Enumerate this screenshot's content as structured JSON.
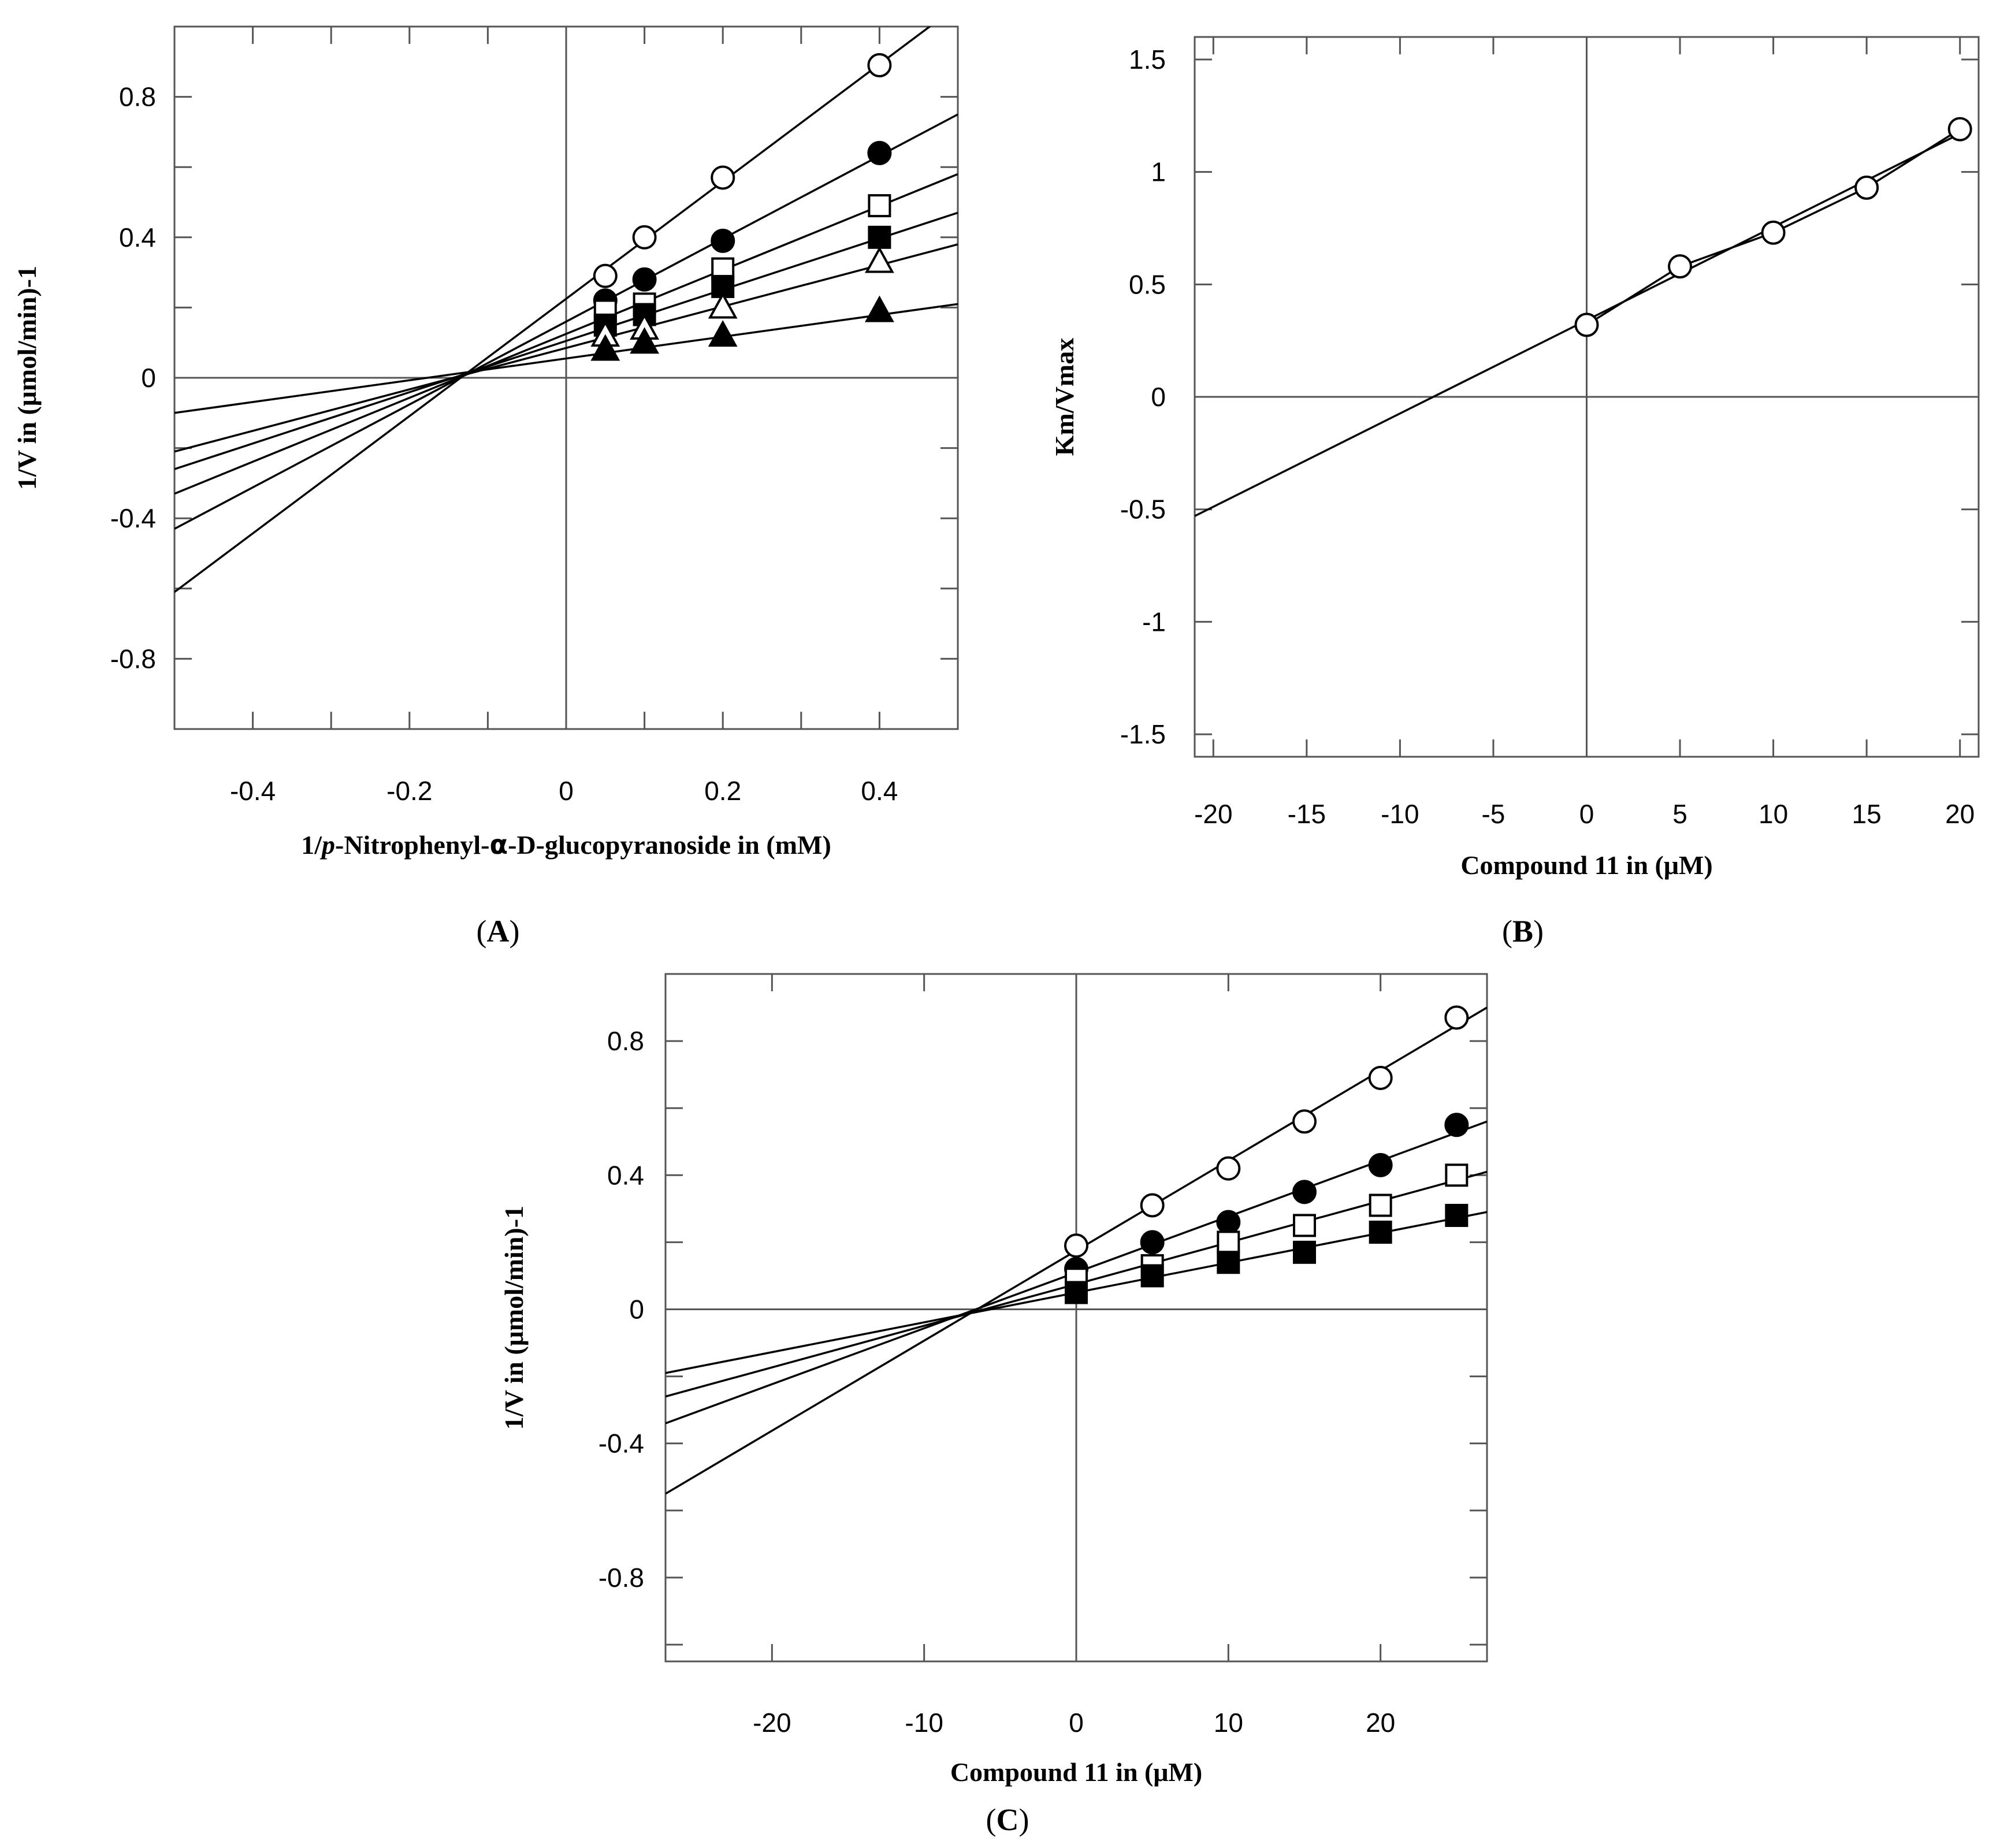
{
  "chart_data": [
    {
      "panel": "A",
      "panel_label": "A",
      "type": "line",
      "title": "",
      "xlabel": "1/p-Nitrophenyl-α-D-glucopyranoside in (mM)",
      "xlabel_parts": [
        "1/",
        "p",
        "-Nitrophenyl-",
        "α",
        "-D-glucopyranoside in (mM)"
      ],
      "ylabel": "1/V in (μmol/min)-1",
      "xlim": [
        -0.5,
        0.5
      ],
      "ylim": [
        -1.0,
        1.0
      ],
      "xticks": [
        -0.4,
        -0.2,
        0,
        0.2,
        0.4
      ],
      "xtick_labels": [
        "-0.4",
        "-0.2",
        "0",
        "0.2",
        "0.4"
      ],
      "yticks": [
        -0.8,
        -0.4,
        0,
        0.4,
        0.8
      ],
      "ytick_labels": [
        "-0.8",
        "-0.4",
        "0",
        "0.4",
        "0.8"
      ],
      "grid": false,
      "series": [
        {
          "name": "open-circle",
          "marker": "open-circle",
          "x": [
            0.05,
            0.1,
            0.2,
            0.4
          ],
          "y": [
            0.29,
            0.4,
            0.57,
            0.89
          ],
          "line": [
            [
              -0.5,
              -0.61
            ],
            [
              0.5,
              1.06
            ]
          ]
        },
        {
          "name": "filled-circle",
          "marker": "filled-circle",
          "x": [
            0.05,
            0.1,
            0.2,
            0.4
          ],
          "y": [
            0.22,
            0.28,
            0.39,
            0.64
          ],
          "line": [
            [
              -0.5,
              -0.43
            ],
            [
              0.5,
              0.75
            ]
          ]
        },
        {
          "name": "open-square",
          "marker": "open-square",
          "x": [
            0.05,
            0.1,
            0.2,
            0.4
          ],
          "y": [
            0.19,
            0.21,
            0.31,
            0.49
          ],
          "line": [
            [
              -0.5,
              -0.33
            ],
            [
              0.5,
              0.58
            ]
          ]
        },
        {
          "name": "filled-square",
          "marker": "filled-square",
          "x": [
            0.05,
            0.1,
            0.2,
            0.4
          ],
          "y": [
            0.15,
            0.18,
            0.26,
            0.4
          ],
          "line": [
            [
              -0.5,
              -0.26
            ],
            [
              0.5,
              0.47
            ]
          ]
        },
        {
          "name": "open-triangle",
          "marker": "open-triangle",
          "x": [
            0.05,
            0.1,
            0.2,
            0.4
          ],
          "y": [
            0.12,
            0.14,
            0.2,
            0.33
          ],
          "line": [
            [
              -0.5,
              -0.21
            ],
            [
              0.5,
              0.38
            ]
          ]
        },
        {
          "name": "filled-triangle",
          "marker": "filled-triangle",
          "x": [
            0.05,
            0.1,
            0.2,
            0.4
          ],
          "y": [
            0.08,
            0.1,
            0.12,
            0.19
          ],
          "line": [
            [
              -0.5,
              -0.1
            ],
            [
              0.5,
              0.21
            ]
          ]
        }
      ]
    },
    {
      "panel": "B",
      "panel_label": "B",
      "type": "line",
      "title": "",
      "xlabel": "Compound 11  in (μM)",
      "ylabel": "Km/Vmax",
      "xlim": [
        -21,
        21
      ],
      "ylim": [
        -1.6,
        1.6
      ],
      "xticks": [
        -20,
        -15,
        -10,
        -5,
        0,
        5,
        10,
        15,
        20
      ],
      "xtick_labels": [
        "-20",
        "-15",
        "-10",
        "-5",
        "0",
        "5",
        "10",
        "15",
        "20"
      ],
      "yticks": [
        -1.5,
        -1,
        -0.5,
        0,
        0.5,
        1,
        1.5
      ],
      "ytick_labels": [
        "-1.5",
        "-1",
        "-0.5",
        "0",
        "0.5",
        "1",
        "1.5"
      ],
      "grid": false,
      "series": [
        {
          "name": "Km/Vmax",
          "marker": "open-circle",
          "x": [
            0,
            5,
            10,
            15,
            20
          ],
          "y": [
            0.32,
            0.58,
            0.73,
            0.93,
            1.19
          ],
          "connect": true,
          "line": [
            [
              -21,
              -0.53
            ],
            [
              20,
              1.17
            ]
          ]
        }
      ]
    },
    {
      "panel": "C",
      "panel_label": "C",
      "type": "line",
      "title": "",
      "xlabel": "Compound 11 in (μM)",
      "ylabel": "1/V in (μmol/min)-1",
      "xlim": [
        -27,
        27
      ],
      "ylim": [
        -1.05,
        1.0
      ],
      "xticks": [
        -20,
        -10,
        0,
        10,
        20
      ],
      "xtick_labels": [
        "-20",
        "-10",
        "0",
        "10",
        "20"
      ],
      "yticks": [
        -0.8,
        -0.4,
        0,
        0.4,
        0.8
      ],
      "ytick_labels": [
        "-0.8",
        "-0.4",
        "0",
        "0.4",
        "0.8"
      ],
      "grid": false,
      "series": [
        {
          "name": "open-circle",
          "marker": "open-circle",
          "x": [
            0,
            5,
            10,
            15,
            20,
            25
          ],
          "y": [
            0.19,
            0.31,
            0.42,
            0.56,
            0.69,
            0.87
          ],
          "line": [
            [
              -27,
              -0.55
            ],
            [
              27,
              0.9
            ]
          ]
        },
        {
          "name": "filled-circle",
          "marker": "filled-circle",
          "x": [
            0,
            5,
            10,
            15,
            20,
            25
          ],
          "y": [
            0.12,
            0.2,
            0.26,
            0.35,
            0.43,
            0.55
          ],
          "line": [
            [
              -27,
              -0.34
            ],
            [
              27,
              0.56
            ]
          ]
        },
        {
          "name": "open-square",
          "marker": "open-square",
          "x": [
            0,
            5,
            10,
            15,
            20,
            25
          ],
          "y": [
            0.09,
            0.13,
            0.2,
            0.25,
            0.31,
            0.4
          ],
          "line": [
            [
              -27,
              -0.26
            ],
            [
              27,
              0.41
            ]
          ]
        },
        {
          "name": "filled-square",
          "marker": "filled-square",
          "x": [
            0,
            5,
            10,
            15,
            20,
            25
          ],
          "y": [
            0.05,
            0.1,
            0.14,
            0.17,
            0.23,
            0.28
          ],
          "line": [
            [
              -27,
              -0.19
            ],
            [
              27,
              0.29
            ]
          ]
        }
      ]
    }
  ]
}
